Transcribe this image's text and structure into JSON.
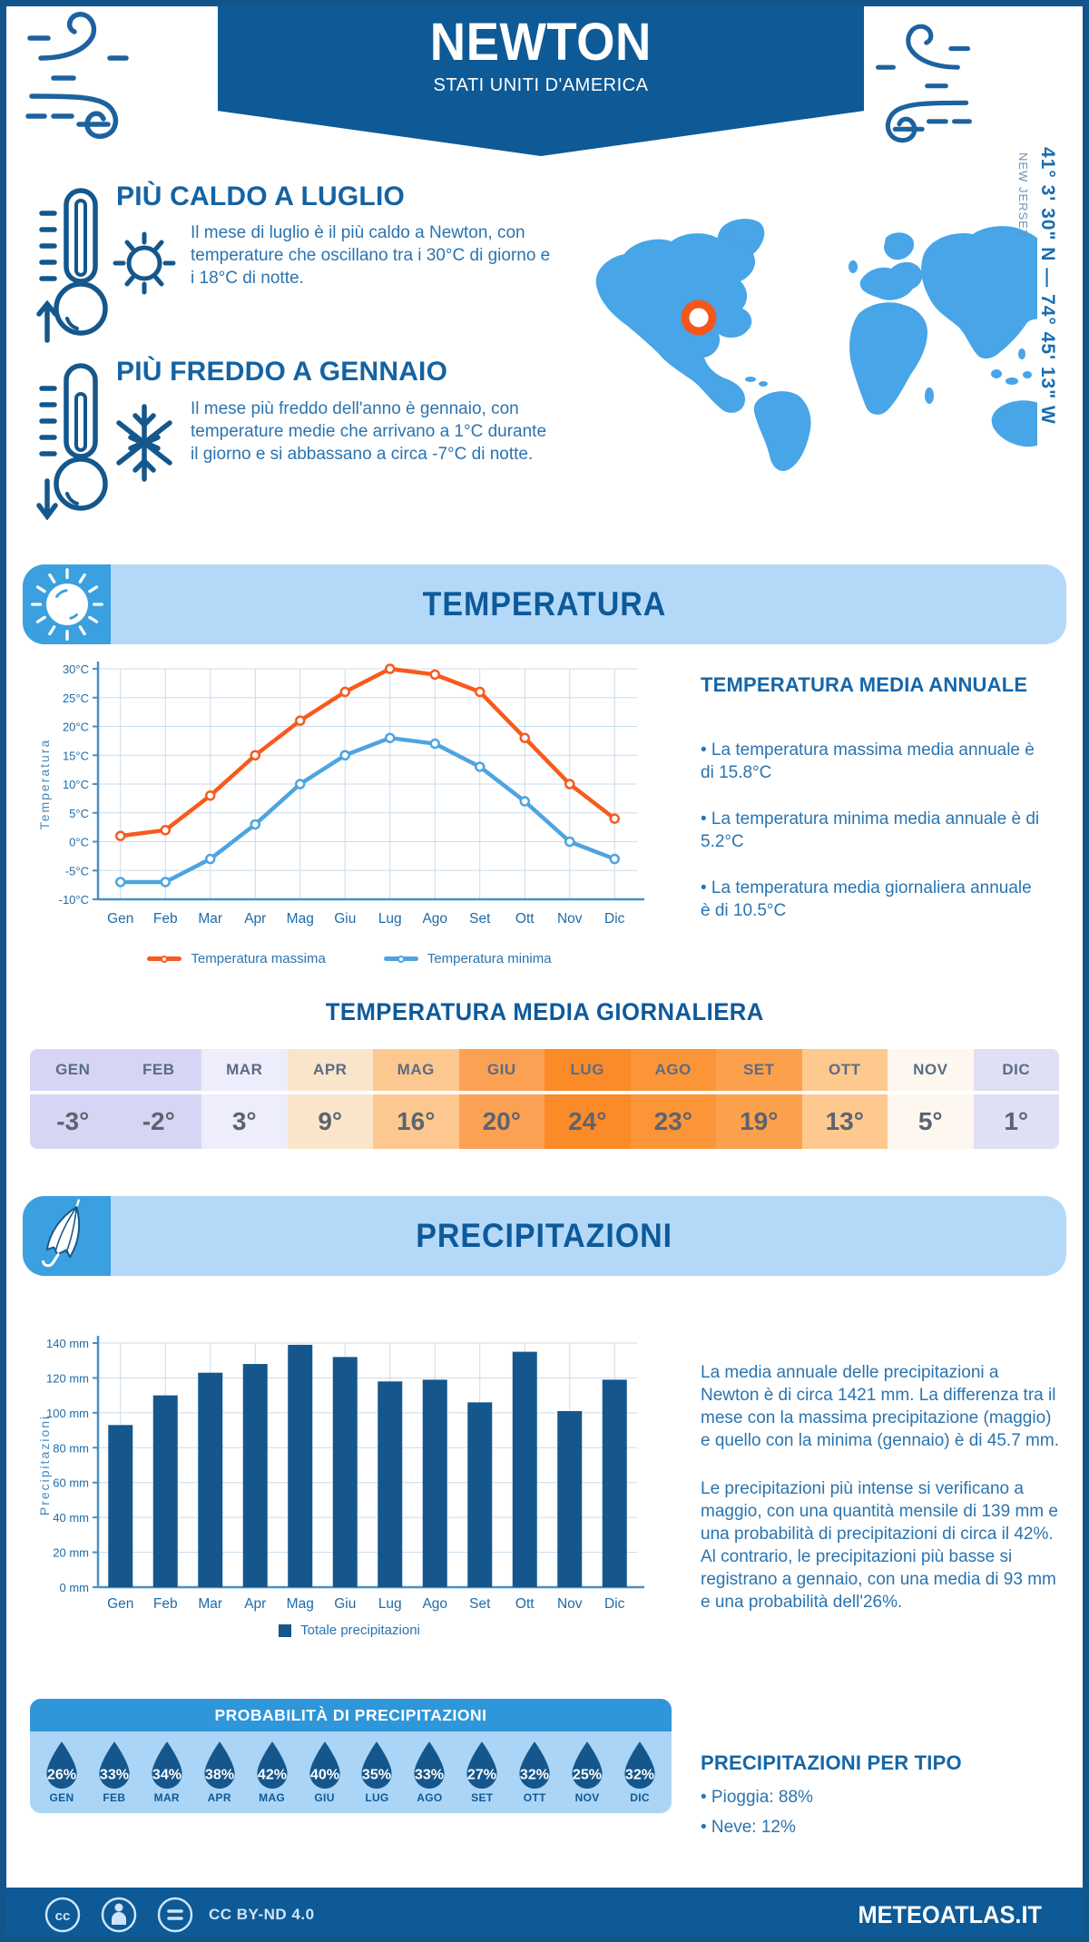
{
  "header": {
    "title": "NEWTON",
    "subtitle": "STATI UNITI D'AMERICA"
  },
  "hottest": {
    "title": "PIÙ CALDO A LUGLIO",
    "body": "Il mese di luglio è il più caldo a Newton, con temperature che oscillano tra i 30°C di giorno e i 18°C di notte."
  },
  "coldest": {
    "title": "PIÙ FREDDO A GENNAIO",
    "body": "Il mese più freddo dell'anno è gennaio, con temperature medie che arrivano a 1°C durante il giorno e si abbassano a circa -7°C di notte."
  },
  "location": {
    "coordinates": "41° 3' 30\" N — 74° 45' 13\" W",
    "region": "NEW JERSEY"
  },
  "temperature_section": {
    "title": "TEMPERATURA"
  },
  "precipitation_section": {
    "title": "PRECIPITAZIONI"
  },
  "chart_data": [
    {
      "type": "line",
      "title": "",
      "categories": [
        "Gen",
        "Feb",
        "Mar",
        "Apr",
        "Mag",
        "Giu",
        "Lug",
        "Ago",
        "Set",
        "Ott",
        "Nov",
        "Dic"
      ],
      "series": [
        {
          "name": "Temperatura massima",
          "color": "#f85a1d",
          "values": [
            1,
            2,
            8,
            15,
            21,
            26,
            30,
            29,
            26,
            18,
            10,
            4
          ]
        },
        {
          "name": "Temperatura minima",
          "color": "#4da4e0",
          "values": [
            -7,
            -7,
            -3,
            3,
            10,
            15,
            18,
            17,
            13,
            7,
            0,
            -3
          ]
        }
      ],
      "xlabel": "",
      "ylabel": "Temperatura",
      "ylim": [
        -10,
        30
      ],
      "ytick_step": 5,
      "yunit": "°C",
      "grid": true,
      "legend_position": "bottom"
    },
    {
      "type": "bar",
      "title": "",
      "categories": [
        "Gen",
        "Feb",
        "Mar",
        "Apr",
        "Mag",
        "Giu",
        "Lug",
        "Ago",
        "Set",
        "Ott",
        "Nov",
        "Dic"
      ],
      "series": [
        {
          "name": "Totale precipitazioni",
          "color": "#15578c",
          "values": [
            93,
            110,
            123,
            128,
            139,
            132,
            118,
            119,
            106,
            135,
            101,
            119
          ]
        }
      ],
      "xlabel": "",
      "ylabel": "Precipitazioni",
      "ylim": [
        0,
        140
      ],
      "ytick_step": 20,
      "yunit": " mm",
      "grid": true,
      "legend_position": "bottom"
    }
  ],
  "annual_temperature": {
    "title": "TEMPERATURA MEDIA ANNUALE",
    "bullets": [
      "• La temperatura massima media annuale è di 15.8°C",
      "• La temperatura minima media annuale è di 5.2°C",
      "• La temperatura media giornaliera annuale è di 10.5°C"
    ]
  },
  "daily_table": {
    "title": "TEMPERATURA MEDIA GIORNALIERA",
    "months": [
      {
        "label": "GEN",
        "value": "-3°",
        "color": "#d6d6f4"
      },
      {
        "label": "FEB",
        "value": "-2°",
        "color": "#d6d6f4"
      },
      {
        "label": "MAR",
        "value": "3°",
        "color": "#ededfb"
      },
      {
        "label": "APR",
        "value": "9°",
        "color": "#fae5cb"
      },
      {
        "label": "MAG",
        "value": "16°",
        "color": "#fdc88f"
      },
      {
        "label": "GIU",
        "value": "20°",
        "color": "#fca153"
      },
      {
        "label": "LUG",
        "value": "24°",
        "color": "#fb8a28"
      },
      {
        "label": "AGO",
        "value": "23°",
        "color": "#fb9538"
      },
      {
        "label": "SET",
        "value": "19°",
        "color": "#fca04b"
      },
      {
        "label": "OTT",
        "value": "13°",
        "color": "#fdc98f"
      },
      {
        "label": "NOV",
        "value": "5°",
        "color": "#fdf7ef"
      },
      {
        "label": "DIC",
        "value": "1°",
        "color": "#dfdff6"
      }
    ]
  },
  "precipitation_text": {
    "paragraphs": [
      "La media annuale delle precipitazioni a Newton è di circa 1421 mm. La differenza tra il mese con la massima precipitazione (maggio) e quello con la minima (gennaio) è di 45.7 mm.",
      "Le precipitazioni più intense si verificano a maggio, con una quantità mensile di 139 mm e una probabilità di precipitazioni di circa il 42%. Al contrario, le precipitazioni più basse si registrano a gennaio, con una media di 93 mm e una probabilità dell'26%."
    ]
  },
  "probability": {
    "title": "PROBABILITÀ DI PRECIPITAZIONI",
    "months": [
      {
        "label": "GEN",
        "value": "26%"
      },
      {
        "label": "FEB",
        "value": "33%"
      },
      {
        "label": "MAR",
        "value": "34%"
      },
      {
        "label": "APR",
        "value": "38%"
      },
      {
        "label": "MAG",
        "value": "42%"
      },
      {
        "label": "GIU",
        "value": "40%"
      },
      {
        "label": "LUG",
        "value": "35%"
      },
      {
        "label": "AGO",
        "value": "33%"
      },
      {
        "label": "SET",
        "value": "27%"
      },
      {
        "label": "OTT",
        "value": "32%"
      },
      {
        "label": "NOV",
        "value": "25%"
      },
      {
        "label": "DIC",
        "value": "32%"
      }
    ]
  },
  "precipitation_type": {
    "title": "PRECIPITAZIONI PER TIPO",
    "bullets": [
      "• Pioggia: 88%",
      "• Neve: 12%"
    ]
  },
  "footer": {
    "license": "CC BY-ND 4.0",
    "brand": "METEOATLAS.IT"
  },
  "colors": {
    "dark_blue": "#0d5a96",
    "accent_orange": "#f4571c",
    "light_banner_blue": "#b4d9f8",
    "map_blue": "#47a5e8",
    "prob_header_blue": "#2f96d9",
    "prob_body_blue": "#abd5f6",
    "drop_blue": "#15578c"
  }
}
